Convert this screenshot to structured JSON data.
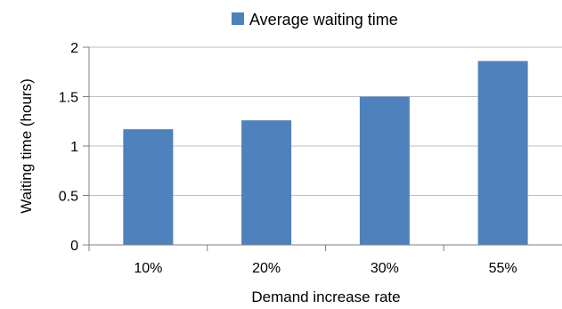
{
  "chart_data": {
    "type": "bar",
    "categories": [
      "10%",
      "20%",
      "30%",
      "55%"
    ],
    "series": [
      {
        "name": "Average waiting time",
        "values": [
          1.17,
          1.26,
          1.5,
          1.86
        ]
      }
    ],
    "xlabel": "Demand increase rate",
    "ylabel": "Waiting time (hours)",
    "ylim": [
      0,
      2
    ],
    "yticks": [
      "0",
      "0.5",
      "1",
      "1.5",
      "2"
    ],
    "grid": true,
    "legend_position": "top-center",
    "colors": {
      "bar": "#4f81bd",
      "grid": "#bfbfbf",
      "axis": "#7f7f7f"
    }
  }
}
